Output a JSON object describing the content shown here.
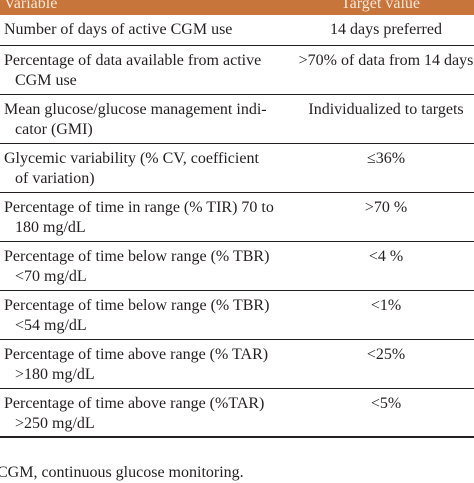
{
  "table": {
    "header": {
      "variable": "Variable",
      "target": "Target value"
    },
    "rows": [
      {
        "variable": [
          "Number of days of active CGM use"
        ],
        "target": "14 days preferred"
      },
      {
        "variable": [
          "Percentage of data available from active",
          "CGM use"
        ],
        "target": ">70% of data from 14 days"
      },
      {
        "variable": [
          "Mean glucose/glucose management indi-",
          "cator (GMI)"
        ],
        "target": "Individualized to targets"
      },
      {
        "variable": [
          "Glycemic variability (% CV, coefficient",
          "of variation)"
        ],
        "target": "≤36%"
      },
      {
        "variable": [
          "Percentage of time in range (% TIR) 70 to",
          "180 mg/dL"
        ],
        "target": ">70 %"
      },
      {
        "variable": [
          "Percentage of time below range (% TBR)",
          "<70 mg/dL"
        ],
        "target": "<4 %"
      },
      {
        "variable": [
          "Percentage of time below range (% TBR)",
          "<54 mg/dL"
        ],
        "target": "<1%"
      },
      {
        "variable": [
          "Percentage of time above range (% TAR)",
          ">180 mg/dL"
        ],
        "target": "<25%"
      },
      {
        "variable": [
          "Percentage of time above range (%TAR)",
          ">250 mg/dL"
        ],
        "target": "<5%"
      }
    ]
  },
  "footnote": "CGM, continuous glucose monitoring."
}
